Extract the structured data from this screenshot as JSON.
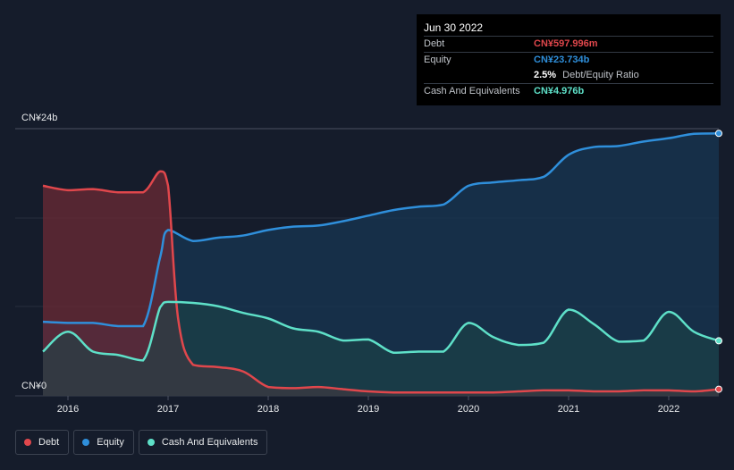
{
  "chart_data": {
    "type": "area",
    "ylim": [
      0,
      24
    ],
    "y_unit": "b",
    "y_tick_labels": [
      "CN¥0",
      "CN¥24b"
    ],
    "x_range": [
      2015.75,
      2022.5
    ],
    "x_ticks": [
      2016,
      2017,
      2018,
      2019,
      2020,
      2021,
      2022
    ],
    "x_tick_labels": [
      "2016",
      "2017",
      "2018",
      "2019",
      "2020",
      "2021",
      "2022"
    ],
    "grid": true,
    "legend_position": "bottom-left",
    "series": [
      {
        "name": "Debt",
        "color": "#e0474c",
        "fill": "#6b2a36",
        "points": [
          [
            2015.75,
            19.0
          ],
          [
            2016.0,
            18.6
          ],
          [
            2016.25,
            18.7
          ],
          [
            2016.5,
            18.4
          ],
          [
            2016.75,
            18.4
          ],
          [
            2016.92,
            20.3
          ],
          [
            2017.0,
            19.0
          ],
          [
            2017.1,
            7.0
          ],
          [
            2017.25,
            2.8
          ],
          [
            2017.5,
            2.6
          ],
          [
            2017.75,
            2.2
          ],
          [
            2018.0,
            0.8
          ],
          [
            2018.25,
            0.7
          ],
          [
            2018.5,
            0.8
          ],
          [
            2018.75,
            0.6
          ],
          [
            2019.0,
            0.4
          ],
          [
            2019.25,
            0.3
          ],
          [
            2019.5,
            0.3
          ],
          [
            2019.75,
            0.3
          ],
          [
            2020.0,
            0.3
          ],
          [
            2020.25,
            0.3
          ],
          [
            2020.5,
            0.4
          ],
          [
            2020.75,
            0.5
          ],
          [
            2021.0,
            0.5
          ],
          [
            2021.25,
            0.4
          ],
          [
            2021.5,
            0.4
          ],
          [
            2021.75,
            0.5
          ],
          [
            2022.0,
            0.5
          ],
          [
            2022.25,
            0.4
          ],
          [
            2022.5,
            0.598
          ]
        ]
      },
      {
        "name": "Equity",
        "color": "#2f8fdb",
        "fill": "#173550",
        "points": [
          [
            2015.75,
            6.7
          ],
          [
            2016.0,
            6.6
          ],
          [
            2016.25,
            6.6
          ],
          [
            2016.5,
            6.3
          ],
          [
            2016.75,
            6.3
          ],
          [
            2016.92,
            12.5
          ],
          [
            2017.0,
            15.0
          ],
          [
            2017.25,
            14.0
          ],
          [
            2017.5,
            14.3
          ],
          [
            2017.75,
            14.5
          ],
          [
            2018.0,
            15.0
          ],
          [
            2018.25,
            15.3
          ],
          [
            2018.5,
            15.4
          ],
          [
            2018.75,
            15.8
          ],
          [
            2019.0,
            16.3
          ],
          [
            2019.25,
            16.8
          ],
          [
            2019.5,
            17.1
          ],
          [
            2019.75,
            17.3
          ],
          [
            2020.0,
            19.0
          ],
          [
            2020.25,
            19.3
          ],
          [
            2020.5,
            19.5
          ],
          [
            2020.75,
            19.8
          ],
          [
            2021.0,
            21.8
          ],
          [
            2021.25,
            22.5
          ],
          [
            2021.5,
            22.6
          ],
          [
            2021.75,
            23.0
          ],
          [
            2022.0,
            23.3
          ],
          [
            2022.25,
            23.7
          ],
          [
            2022.5,
            23.734
          ]
        ]
      },
      {
        "name": "Cash And Equivalents",
        "color": "#5ee0c8",
        "fill": "#1d4548",
        "points": [
          [
            2015.75,
            4.0
          ],
          [
            2016.0,
            5.8
          ],
          [
            2016.25,
            4.0
          ],
          [
            2016.5,
            3.7
          ],
          [
            2016.75,
            3.2
          ],
          [
            2016.92,
            8.0
          ],
          [
            2017.0,
            8.5
          ],
          [
            2017.25,
            8.4
          ],
          [
            2017.5,
            8.1
          ],
          [
            2017.75,
            7.5
          ],
          [
            2018.0,
            7.0
          ],
          [
            2018.25,
            6.1
          ],
          [
            2018.5,
            5.8
          ],
          [
            2018.75,
            5.0
          ],
          [
            2019.0,
            5.1
          ],
          [
            2019.25,
            3.9
          ],
          [
            2019.5,
            4.0
          ],
          [
            2019.75,
            4.0
          ],
          [
            2020.0,
            6.6
          ],
          [
            2020.25,
            5.3
          ],
          [
            2020.5,
            4.6
          ],
          [
            2020.75,
            4.8
          ],
          [
            2021.0,
            7.8
          ],
          [
            2021.25,
            6.5
          ],
          [
            2021.5,
            4.9
          ],
          [
            2021.75,
            5.0
          ],
          [
            2022.0,
            7.6
          ],
          [
            2022.25,
            5.8
          ],
          [
            2022.5,
            4.976
          ]
        ]
      }
    ]
  },
  "tooltip": {
    "date": "Jun 30 2022",
    "rows": [
      {
        "label": "Debt",
        "value": "CN¥597.996m",
        "color": "#e0474c"
      },
      {
        "label": "Equity",
        "value": "CN¥23.734b",
        "color": "#2f8fdb"
      },
      {
        "label": "",
        "value": "2.5%",
        "extra": "Debt/Equity Ratio",
        "color": "#ffffff"
      },
      {
        "label": "Cash And Equivalents",
        "value": "CN¥4.976b",
        "color": "#5ee0c8"
      }
    ]
  },
  "legend": [
    {
      "label": "Debt",
      "color": "#e0474c"
    },
    {
      "label": "Equity",
      "color": "#2f8fdb"
    },
    {
      "label": "Cash And Equivalents",
      "color": "#5ee0c8"
    }
  ]
}
